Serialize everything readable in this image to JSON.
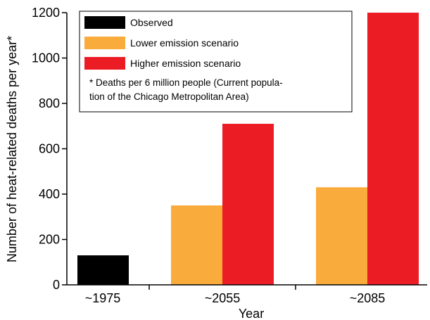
{
  "chart_data": {
    "type": "bar",
    "xlabel": "Year",
    "ylabel": "Number of heat-related deaths per year*",
    "ylim": [
      0,
      1200
    ],
    "yticks": [
      0,
      200,
      400,
      600,
      800,
      1000,
      1200
    ],
    "categories": [
      "~1975",
      "~2055",
      "~2085"
    ],
    "series": [
      {
        "name": "Observed",
        "color": "#000000",
        "values": [
          130,
          null,
          null
        ]
      },
      {
        "name": "Lower emission scenario",
        "color": "#F9AB3B",
        "values": [
          null,
          350,
          430
        ]
      },
      {
        "name": "Higher emission scenario",
        "color": "#EC1C24",
        "values": [
          null,
          710,
          1200
        ]
      }
    ],
    "legend_position": "top-left",
    "footnote_lines": [
      "* Deaths per 6 million people (Current popula-",
      "tion of the Chicago Metropolitan Area)"
    ]
  }
}
